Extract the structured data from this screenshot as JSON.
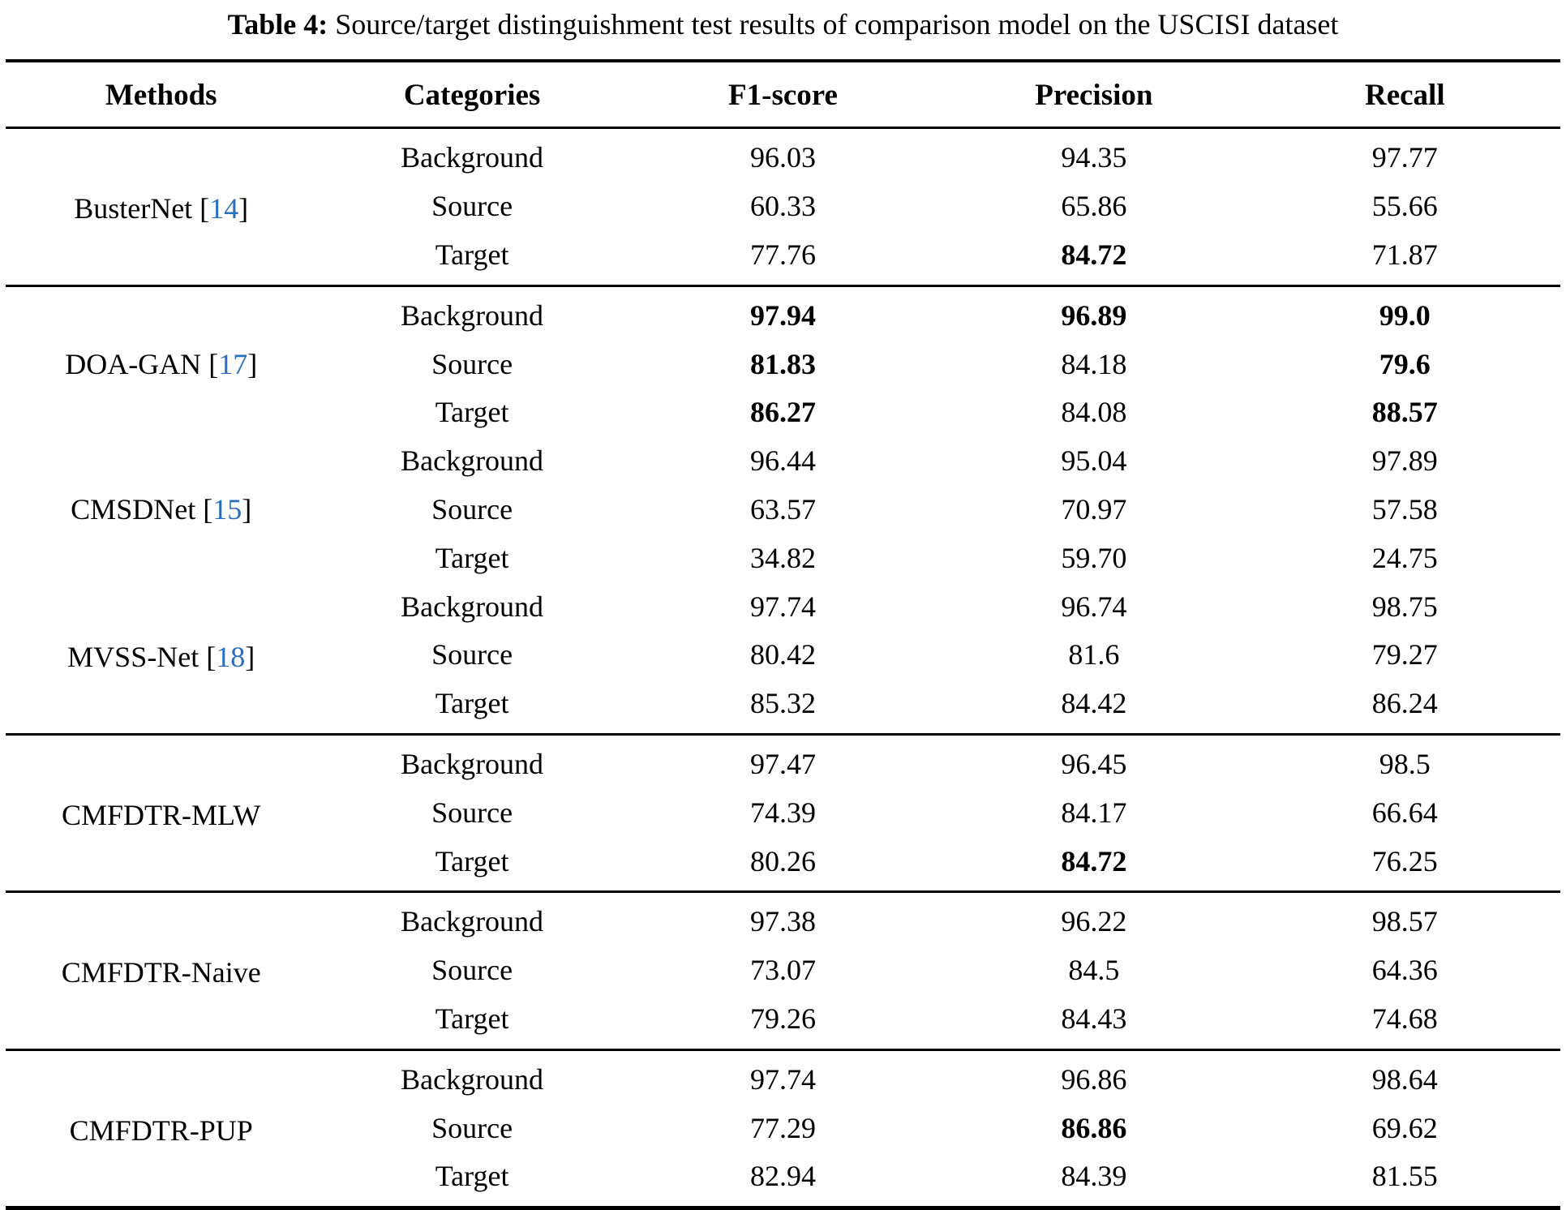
{
  "caption": {
    "label": "Table 4:",
    "text": " Source/target distinguishment test results of comparison model on the USCISI dataset"
  },
  "colors": {
    "citation": "#2a6ebf",
    "text": "#000000",
    "background": "#ffffff"
  },
  "table": {
    "headers": [
      "Methods",
      "Categories",
      "F1-score",
      "Precision",
      "Recall"
    ],
    "blocks": [
      {
        "methods": [
          {
            "name": "BusterNet",
            "citation": "14",
            "rows": [
              {
                "category": "Background",
                "f1": "96.03",
                "precision": "94.35",
                "recall": "97.77",
                "bold": []
              },
              {
                "category": "Source",
                "f1": "60.33",
                "precision": "65.86",
                "recall": "55.66",
                "bold": []
              },
              {
                "category": "Target",
                "f1": "77.76",
                "precision": "84.72",
                "recall": "71.87",
                "bold": [
                  "precision"
                ]
              }
            ]
          }
        ]
      },
      {
        "methods": [
          {
            "name": "DOA-GAN",
            "citation": "17",
            "rows": [
              {
                "category": "Background",
                "f1": "97.94",
                "precision": "96.89",
                "recall": "99.0",
                "bold": [
                  "f1",
                  "precision",
                  "recall"
                ]
              },
              {
                "category": "Source",
                "f1": "81.83",
                "precision": "84.18",
                "recall": "79.6",
                "bold": [
                  "f1",
                  "recall"
                ]
              },
              {
                "category": "Target",
                "f1": "86.27",
                "precision": "84.08",
                "recall": "88.57",
                "bold": [
                  "f1",
                  "recall"
                ]
              }
            ]
          },
          {
            "name": "CMSDNet",
            "citation": "15",
            "rows": [
              {
                "category": "Background",
                "f1": "96.44",
                "precision": "95.04",
                "recall": "97.89",
                "bold": []
              },
              {
                "category": "Source",
                "f1": "63.57",
                "precision": "70.97",
                "recall": "57.58",
                "bold": []
              },
              {
                "category": "Target",
                "f1": "34.82",
                "precision": "59.70",
                "recall": "24.75",
                "bold": []
              }
            ]
          },
          {
            "name": "MVSS-Net",
            "citation": "18",
            "rows": [
              {
                "category": "Background",
                "f1": "97.74",
                "precision": "96.74",
                "recall": "98.75",
                "bold": []
              },
              {
                "category": "Source",
                "f1": "80.42",
                "precision": "81.6",
                "recall": "79.27",
                "bold": []
              },
              {
                "category": "Target",
                "f1": "85.32",
                "precision": "84.42",
                "recall": "86.24",
                "bold": []
              }
            ]
          }
        ]
      },
      {
        "methods": [
          {
            "name": "CMFDTR-MLW",
            "citation": null,
            "rows": [
              {
                "category": "Background",
                "f1": "97.47",
                "precision": "96.45",
                "recall": "98.5",
                "bold": []
              },
              {
                "category": "Source",
                "f1": "74.39",
                "precision": "84.17",
                "recall": "66.64",
                "bold": []
              },
              {
                "category": "Target",
                "f1": "80.26",
                "precision": "84.72",
                "recall": "76.25",
                "bold": [
                  "precision"
                ]
              }
            ]
          }
        ]
      },
      {
        "methods": [
          {
            "name": "CMFDTR-Naive",
            "citation": null,
            "rows": [
              {
                "category": "Background",
                "f1": "97.38",
                "precision": "96.22",
                "recall": "98.57",
                "bold": []
              },
              {
                "category": "Source",
                "f1": "73.07",
                "precision": "84.5",
                "recall": "64.36",
                "bold": []
              },
              {
                "category": "Target",
                "f1": "79.26",
                "precision": "84.43",
                "recall": "74.68",
                "bold": []
              }
            ]
          }
        ]
      },
      {
        "methods": [
          {
            "name": "CMFDTR-PUP",
            "citation": null,
            "rows": [
              {
                "category": "Background",
                "f1": "97.74",
                "precision": "96.86",
                "recall": "98.64",
                "bold": []
              },
              {
                "category": "Source",
                "f1": "77.29",
                "precision": "86.86",
                "recall": "69.62",
                "bold": [
                  "precision"
                ]
              },
              {
                "category": "Target",
                "f1": "82.94",
                "precision": "84.39",
                "recall": "81.55",
                "bold": []
              }
            ]
          }
        ]
      }
    ]
  }
}
